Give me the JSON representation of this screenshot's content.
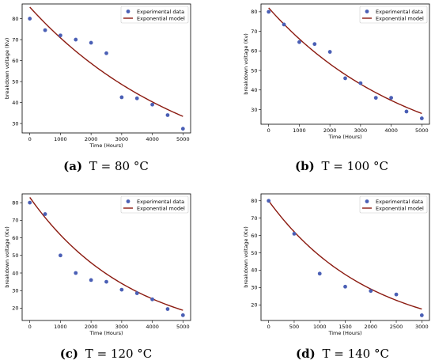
{
  "colors": {
    "points": "#4a5fb5",
    "model": "#8b1a10"
  },
  "chart_data": [
    {
      "type": "scatter",
      "caption": {
        "letter": "(a)",
        "text": "T = 80 °C"
      },
      "xlabel": "Time (Hours)",
      "ylabel": "breakdown voltage (Kv)",
      "xlim": [
        -250,
        5250
      ],
      "ylim": [
        25.5,
        87
      ],
      "xticks": [
        0,
        1000,
        2000,
        3000,
        4000,
        5000
      ],
      "yticks": [
        30,
        40,
        50,
        60,
        70,
        80
      ],
      "legend": {
        "position": "top-right",
        "entries": [
          "Experimental data",
          "Exponential model"
        ]
      },
      "series": [
        {
          "name": "Experimental data",
          "kind": "points",
          "x": [
            0,
            500,
            1000,
            1500,
            2000,
            2500,
            3000,
            3500,
            4000,
            4500,
            5000
          ],
          "y": [
            80,
            74.5,
            72,
            70,
            68.5,
            63.5,
            42.5,
            42,
            39,
            34,
            27.5
          ]
        },
        {
          "name": "Exponential model",
          "kind": "exponential",
          "a": 85.5,
          "b": 0.000188
        }
      ]
    },
    {
      "type": "scatter",
      "caption": {
        "letter": "(b)",
        "text": "T = 100 °C"
      },
      "xlabel": "Time (Hours)",
      "ylabel": "breakdown voltage (Kv)",
      "xlim": [
        -250,
        5250
      ],
      "ylim": [
        22.5,
        84
      ],
      "xticks": [
        0,
        1000,
        2000,
        3000,
        4000,
        5000
      ],
      "yticks": [
        30,
        40,
        50,
        60,
        70,
        80
      ],
      "legend": {
        "position": "top-right",
        "entries": [
          "Experimental data",
          "Exponential model"
        ]
      },
      "series": [
        {
          "name": "Experimental data",
          "kind": "points",
          "x": [
            0,
            500,
            1000,
            1500,
            2000,
            2500,
            3000,
            3500,
            4000,
            4500,
            5000
          ],
          "y": [
            80,
            73.5,
            64.5,
            63.5,
            59.5,
            46,
            43.5,
            36,
            36,
            29,
            25.5
          ]
        },
        {
          "name": "Exponential model",
          "kind": "exponential",
          "a": 82,
          "b": 0.000215
        }
      ]
    },
    {
      "type": "scatter",
      "caption": {
        "letter": "(c)",
        "text": "T = 120 °C"
      },
      "xlabel": "Time (Hours)",
      "ylabel": "breakdown voltage (Kv)",
      "xlim": [
        -250,
        5250
      ],
      "ylim": [
        13,
        85
      ],
      "xticks": [
        0,
        1000,
        2000,
        3000,
        4000,
        5000
      ],
      "yticks": [
        20,
        30,
        40,
        50,
        60,
        70,
        80
      ],
      "legend": {
        "position": "top-right",
        "entries": [
          "Experimental data",
          "Exponential model"
        ]
      },
      "series": [
        {
          "name": "Experimental data",
          "kind": "points",
          "x": [
            0,
            500,
            1000,
            1500,
            2000,
            2500,
            3000,
            3500,
            4000,
            4500,
            5000
          ],
          "y": [
            80,
            73.5,
            50,
            40,
            36,
            35,
            30.5,
            28.5,
            25,
            19.5,
            16
          ]
        },
        {
          "name": "Exponential model",
          "kind": "exponential",
          "a": 83,
          "b": 0.000297
        }
      ]
    },
    {
      "type": "scatter",
      "caption": {
        "letter": "(d)",
        "text": "T = 140 °C"
      },
      "xlabel": "Time (Hours)",
      "ylabel": "breakdown voltage (Kv)",
      "xlim": [
        -150,
        3150
      ],
      "ylim": [
        11,
        84
      ],
      "xticks": [
        0,
        500,
        1000,
        1500,
        2000,
        2500,
        3000
      ],
      "yticks": [
        20,
        30,
        40,
        50,
        60,
        70,
        80
      ],
      "legend": {
        "position": "top-right",
        "entries": [
          "Experimental data",
          "Exponential model"
        ]
      },
      "series": [
        {
          "name": "Experimental data",
          "kind": "points",
          "x": [
            0,
            500,
            1000,
            1500,
            2000,
            2500,
            3000
          ],
          "y": [
            80,
            61,
            38,
            30.5,
            28,
            26,
            14
          ]
        },
        {
          "name": "Exponential model",
          "kind": "exponential",
          "a": 80,
          "b": 0.000505
        }
      ]
    }
  ]
}
